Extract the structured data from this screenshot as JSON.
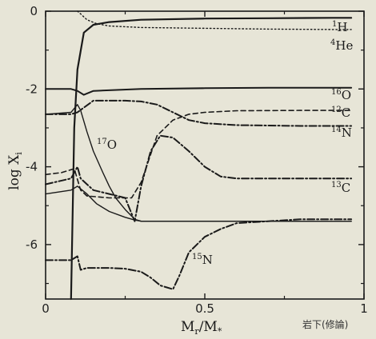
{
  "chart_data": {
    "type": "line",
    "xlabel": "M",
    "xlabel_sub": "r",
    "xlabel_tail": "/M",
    "xlabel_tail_sub": "*",
    "ylabel": "log X",
    "ylabel_sub": "i",
    "xlim": [
      0,
      1
    ],
    "ylim": [
      -7.4,
      0
    ],
    "xticks": [
      0,
      0.5,
      1
    ],
    "xtick_labels": [
      "0",
      "0.5",
      "1"
    ],
    "yticks": [
      0,
      -2,
      -4,
      -6
    ],
    "ytick_labels": [
      "0",
      "-2",
      "-4",
      "-6"
    ],
    "grid": false,
    "annotation": "岩下(修論)",
    "series": [
      {
        "name": "1H",
        "label_mass": "1",
        "label_elem": "H",
        "style": "solid",
        "width": 2.2,
        "x": [
          0.08,
          0.09,
          0.1,
          0.12,
          0.15,
          0.2,
          0.3,
          0.5,
          0.7,
          0.9,
          0.96
        ],
        "y": [
          -7.4,
          -3.0,
          -1.5,
          -0.55,
          -0.35,
          -0.28,
          -0.22,
          -0.19,
          -0.18,
          -0.17,
          -0.17
        ]
      },
      {
        "name": "4He",
        "label_mass": "4",
        "label_elem": "He",
        "style": "dotted",
        "width": 1.4,
        "x": [
          0.1,
          0.11,
          0.13,
          0.16,
          0.2,
          0.3,
          0.5,
          0.7,
          0.9,
          0.96
        ],
        "y": [
          0.0,
          -0.07,
          -0.22,
          -0.32,
          -0.38,
          -0.42,
          -0.44,
          -0.46,
          -0.47,
          -0.47
        ]
      },
      {
        "name": "16O",
        "label_mass": "16",
        "label_elem": "O",
        "style": "solid",
        "width": 2.0,
        "x": [
          0.0,
          0.08,
          0.1,
          0.12,
          0.15,
          0.3,
          0.5,
          0.7,
          0.9,
          0.96
        ],
        "y": [
          -2.0,
          -2.0,
          -2.05,
          -2.15,
          -2.05,
          -2.0,
          -1.98,
          -1.97,
          -1.97,
          -1.97
        ]
      },
      {
        "name": "12C",
        "label_mass": "12",
        "label_elem": "C",
        "style": "dashed",
        "width": 1.6,
        "x": [
          0.0,
          0.05,
          0.09,
          0.11,
          0.13,
          0.2,
          0.27,
          0.3,
          0.35,
          0.4,
          0.45,
          0.5,
          0.6,
          0.8,
          0.96
        ],
        "y": [
          -4.2,
          -4.15,
          -4.05,
          -4.6,
          -4.75,
          -4.8,
          -4.8,
          -4.4,
          -3.2,
          -2.8,
          -2.65,
          -2.6,
          -2.56,
          -2.55,
          -2.55
        ]
      },
      {
        "name": "14N",
        "label_mass": "14",
        "label_elem": "N",
        "style": "dashdot",
        "width": 2.0,
        "x": [
          0.0,
          0.08,
          0.1,
          0.15,
          0.2,
          0.25,
          0.3,
          0.35,
          0.4,
          0.45,
          0.5,
          0.6,
          0.8,
          0.96
        ],
        "y": [
          -2.65,
          -2.65,
          -2.6,
          -2.3,
          -2.3,
          -2.3,
          -2.32,
          -2.4,
          -2.6,
          -2.8,
          -2.88,
          -2.93,
          -2.95,
          -2.95
        ]
      },
      {
        "name": "13C",
        "label_mass": "13",
        "label_elem": "C",
        "style": "dashdot",
        "width": 2.0,
        "x": [
          0.0,
          0.08,
          0.1,
          0.11,
          0.15,
          0.2,
          0.25,
          0.28,
          0.3,
          0.33,
          0.36,
          0.4,
          0.45,
          0.5,
          0.55,
          0.6,
          0.8,
          0.96
        ],
        "y": [
          -4.45,
          -4.3,
          -4.0,
          -4.3,
          -4.6,
          -4.7,
          -4.8,
          -5.4,
          -4.5,
          -3.6,
          -3.2,
          -3.25,
          -3.6,
          -4.0,
          -4.25,
          -4.3,
          -4.3,
          -4.3
        ]
      },
      {
        "name": "17O",
        "label_mass": "17",
        "label_elem": "O",
        "style": "solid",
        "width": 1.4,
        "x": [
          0.0,
          0.08,
          0.1,
          0.11,
          0.13,
          0.15,
          0.18,
          0.2,
          0.22,
          0.25,
          0.28,
          0.3,
          0.4,
          0.6,
          0.96
        ],
        "y": [
          -2.65,
          -2.6,
          -2.4,
          -2.55,
          -3.1,
          -3.6,
          -4.15,
          -4.5,
          -4.8,
          -5.1,
          -5.35,
          -5.4,
          -5.4,
          -5.4,
          -5.4
        ]
      },
      {
        "name": "15N",
        "label_mass": "15",
        "label_elem": "N",
        "style": "dashdot",
        "width": 2.0,
        "x": [
          0.0,
          0.08,
          0.1,
          0.11,
          0.13,
          0.2,
          0.25,
          0.3,
          0.33,
          0.36,
          0.4,
          0.42,
          0.45,
          0.5,
          0.55,
          0.6,
          0.8,
          0.96
        ],
        "y": [
          -6.4,
          -6.4,
          -6.3,
          -6.65,
          -6.6,
          -6.6,
          -6.62,
          -6.7,
          -6.85,
          -7.05,
          -7.15,
          -6.8,
          -6.2,
          -5.8,
          -5.6,
          -5.45,
          -5.35,
          -5.35
        ]
      },
      {
        "name": "",
        "label_mass": "",
        "label_elem": "",
        "style": "solid",
        "width": 1.4,
        "x": [
          0.0,
          0.08,
          0.1,
          0.13,
          0.16,
          0.2,
          0.25,
          0.28,
          0.3,
          0.4,
          0.6,
          0.96
        ],
        "y": [
          -4.7,
          -4.6,
          -4.5,
          -4.7,
          -4.95,
          -5.15,
          -5.3,
          -5.37,
          -5.4,
          -5.4,
          -5.4,
          -5.4
        ]
      }
    ]
  },
  "colors": {
    "ink": "#1a1a1a",
    "paper": "#e7e5d7"
  }
}
